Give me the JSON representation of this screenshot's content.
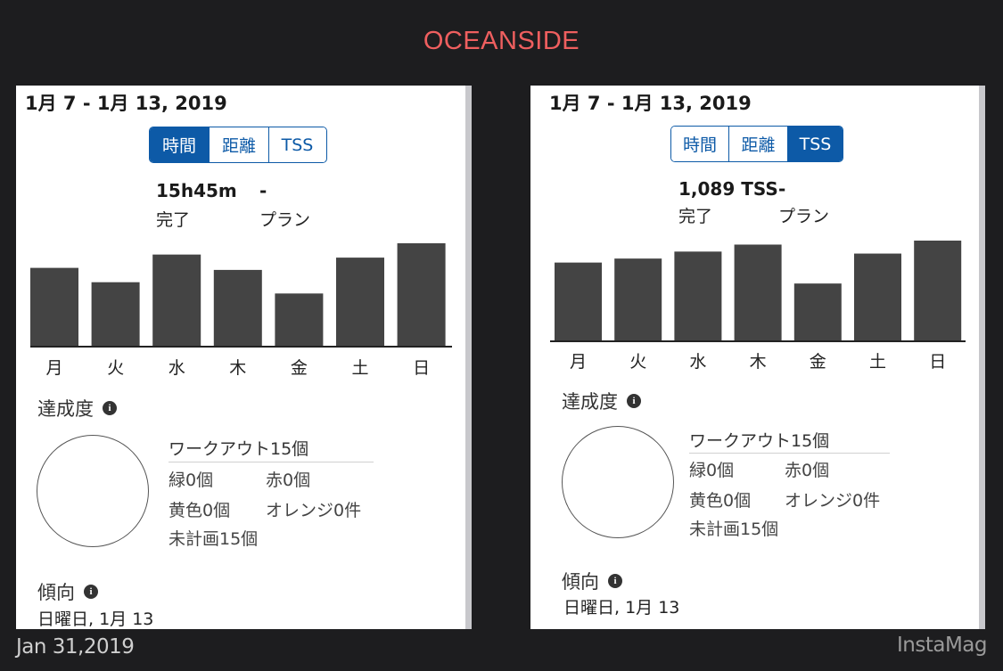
{
  "header": {
    "title": "OCEANSIDE"
  },
  "footer": {
    "date": "Jan 31,2019",
    "brand": "InstaMag"
  },
  "panels": [
    {
      "date_range": "1月 7 - 1月 13, 2019",
      "tabs": [
        {
          "label": "時間",
          "active": true
        },
        {
          "label": "距離",
          "active": false
        },
        {
          "label": "TSS",
          "active": false
        }
      ],
      "stats": {
        "completed_value": "15h45m",
        "planned_value": "-",
        "completed_label": "完了",
        "planned_label": "プラン"
      },
      "achievement": {
        "title": "達成度",
        "workouts_title": "ワークアウト15個",
        "green": "緑0個",
        "red": "赤0個",
        "yellow": "黄色0個",
        "orange": "オレンジ0件",
        "unplanned": "未計画15個"
      },
      "trend": {
        "title": "傾向",
        "date": "日曜日, 1月 13"
      }
    },
    {
      "date_range": "1月 7 - 1月 13, 2019",
      "tabs": [
        {
          "label": "時間",
          "active": false
        },
        {
          "label": "距離",
          "active": false
        },
        {
          "label": "TSS",
          "active": true
        }
      ],
      "stats": {
        "completed_value": "1,089 TSS",
        "planned_value": "-",
        "completed_label": "完了",
        "planned_label": "プラン"
      },
      "achievement": {
        "title": "達成度",
        "workouts_title": "ワークアウト15個",
        "green": "緑0個",
        "red": "赤0個",
        "yellow": "黄色0個",
        "orange": "オレンジ0件",
        "unplanned": "未計画15個"
      },
      "trend": {
        "title": "傾向",
        "date": "日曜日, 1月 13"
      }
    }
  ],
  "chart_data": [
    {
      "type": "bar",
      "categories": [
        "月",
        "火",
        "水",
        "木",
        "金",
        "土",
        "日"
      ],
      "values": [
        0.76,
        0.62,
        0.89,
        0.74,
        0.51,
        0.86,
        1.0
      ],
      "bar_color": "#444444"
    },
    {
      "type": "bar",
      "categories": [
        "月",
        "火",
        "水",
        "木",
        "金",
        "土",
        "日"
      ],
      "values": [
        0.78,
        0.82,
        0.89,
        0.96,
        0.57,
        0.87,
        1.0
      ],
      "bar_color": "#444444"
    }
  ]
}
